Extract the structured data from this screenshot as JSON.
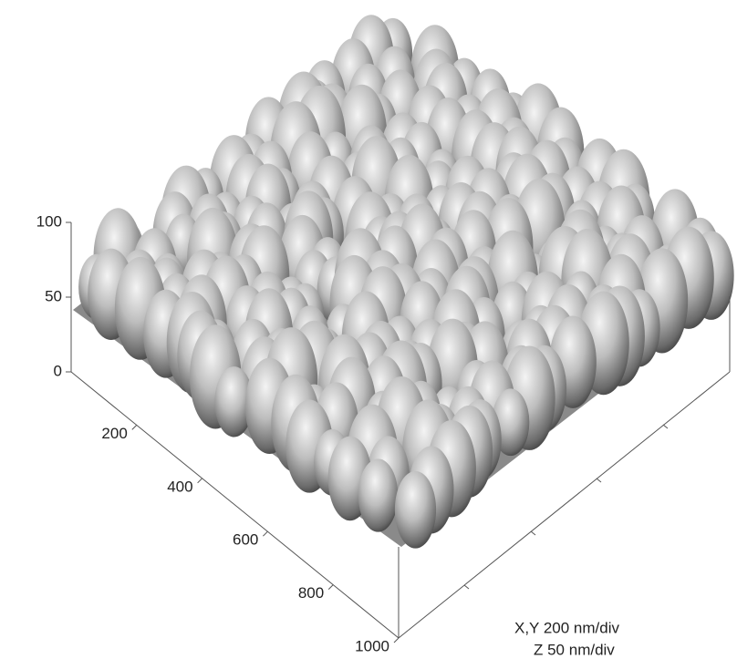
{
  "chart_data": {
    "type": "surface3d",
    "xlim": [
      0,
      1000
    ],
    "xticks": [
      200,
      400,
      600,
      800,
      1000
    ],
    "zlim": [
      0,
      100
    ],
    "zticks": [
      0,
      50,
      100
    ],
    "annotations": [
      "X,Y 200 nm/div",
      "Z   50 nm/div"
    ]
  }
}
